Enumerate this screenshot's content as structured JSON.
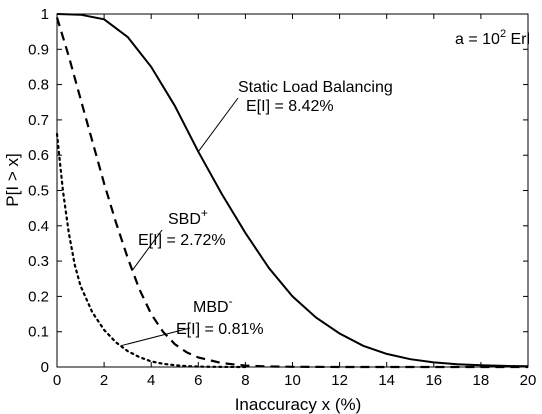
{
  "chart_data": {
    "type": "line",
    "xlabel": "Inaccuracy x (%)",
    "ylabel": "P[I > x]",
    "xlim": [
      0,
      20
    ],
    "ylim": [
      0,
      1
    ],
    "xticks": [
      0,
      2,
      4,
      6,
      8,
      10,
      12,
      14,
      16,
      18,
      20
    ],
    "yticks": [
      0,
      0.1,
      0.2,
      0.3,
      0.4,
      0.5,
      0.6,
      0.7,
      0.8,
      0.9,
      1
    ],
    "grid": false,
    "corner_note": {
      "prefix": "a = 10",
      "sup": "2",
      "suffix": " Erl"
    },
    "series": [
      {
        "name": "Static Load Balancing",
        "style": "solid",
        "color": "#000000",
        "x": [
          0,
          1,
          2,
          3,
          4,
          5,
          6,
          7,
          8,
          9,
          10,
          11,
          12,
          13,
          14,
          15,
          16,
          17,
          18,
          19,
          20
        ],
        "y": [
          1.0,
          0.998,
          0.985,
          0.935,
          0.85,
          0.74,
          0.61,
          0.49,
          0.38,
          0.28,
          0.2,
          0.14,
          0.095,
          0.06,
          0.037,
          0.022,
          0.013,
          0.008,
          0.005,
          0.003,
          0.002
        ]
      },
      {
        "name": "SBD+",
        "style": "dashed",
        "color": "#000000",
        "x": [
          0,
          0.5,
          1,
          1.5,
          2,
          2.5,
          3,
          3.5,
          4,
          4.5,
          5,
          5.5,
          6,
          7,
          8,
          9,
          10,
          12,
          14,
          16,
          18,
          20
        ],
        "y": [
          0.99,
          0.88,
          0.76,
          0.64,
          0.52,
          0.41,
          0.31,
          0.22,
          0.15,
          0.1,
          0.065,
          0.042,
          0.027,
          0.011,
          0.004,
          0.0015,
          0.0005,
          0.0001,
          0,
          0,
          0,
          0
        ]
      },
      {
        "name": "MBD-",
        "style": "dotted",
        "color": "#000000",
        "x": [
          0,
          0.25,
          0.5,
          0.75,
          1,
          1.5,
          2,
          2.5,
          3,
          3.5,
          4,
          4.5,
          5,
          5.5,
          6,
          7,
          8
        ],
        "y": [
          0.66,
          0.5,
          0.38,
          0.29,
          0.23,
          0.155,
          0.105,
          0.07,
          0.045,
          0.028,
          0.016,
          0.009,
          0.005,
          0.0025,
          0.001,
          0.0002,
          0
        ]
      }
    ],
    "annotations": [
      {
        "id": "static",
        "lines": [
          "Static Load Balancing",
          "E[I] = 8.42%"
        ],
        "pointer_x": 6.0
      },
      {
        "id": "sbd",
        "name": "SBD",
        "sup": "+",
        "value": "E[I] = 2.72%",
        "pointer_x": 3.2
      },
      {
        "id": "mbd",
        "name": "MBD",
        "sup": "-",
        "value": "E[I] = 0.81%",
        "pointer_x": 2.7
      }
    ]
  }
}
